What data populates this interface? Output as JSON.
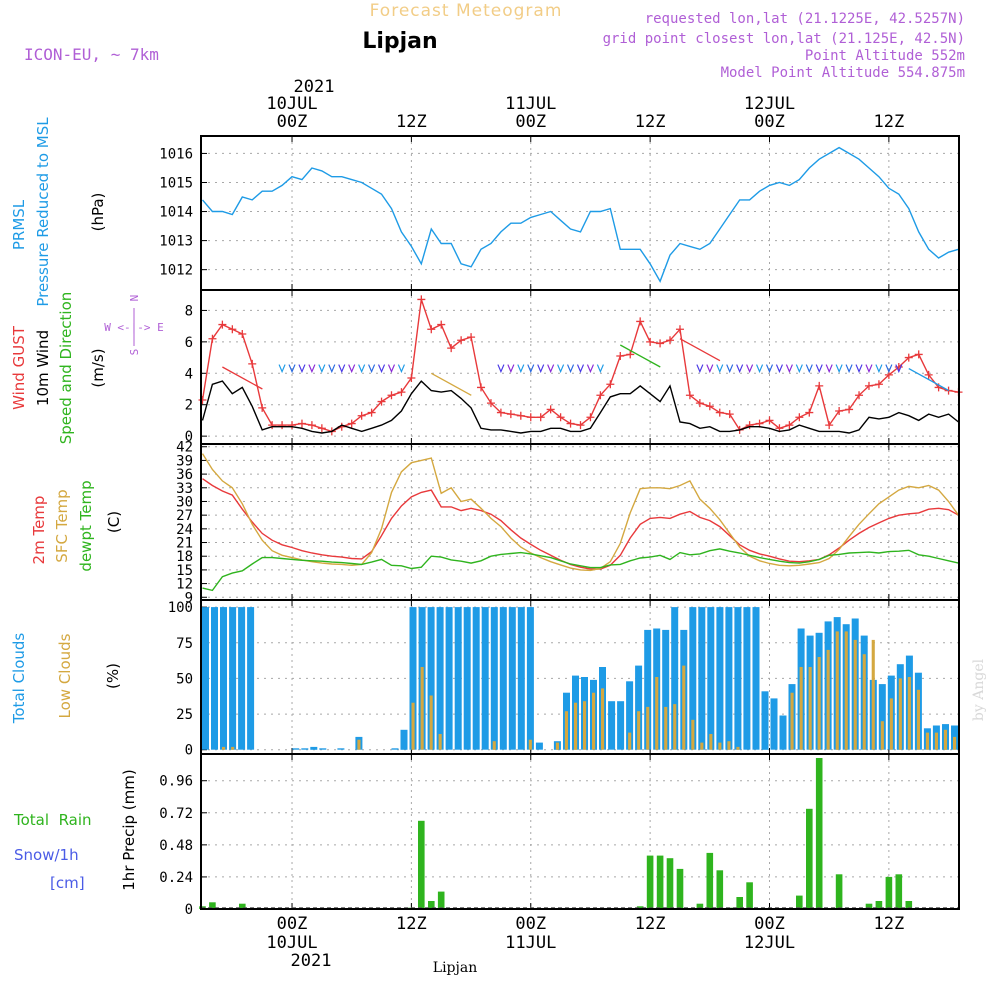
{
  "header": {
    "product_title": "Forecast Meteogram",
    "location": "Lipjan",
    "model": "ICON-EU, ~ 7km",
    "requested": "requested lon,lat (21.1225E, 42.5257N)",
    "grid_point": "grid point closest lon,lat (21.125E, 42.5N)",
    "point_alt": "Point Altitude 552m",
    "model_alt": "Model Point Altitude 554.875m",
    "footer_location": "Lipjan",
    "watermark": "by Angel"
  },
  "time_axis": {
    "top_year": "2021",
    "bottom_year": "2021",
    "ticks": [
      {
        "hour": 9,
        "label": "00Z",
        "date": "10JUL"
      },
      {
        "hour": 21,
        "label": "12Z",
        "date": ""
      },
      {
        "hour": 33,
        "label": "00Z",
        "date": "11JUL"
      },
      {
        "hour": 45,
        "label": "12Z",
        "date": ""
      },
      {
        "hour": 57,
        "label": "00Z",
        "date": "12JUL"
      },
      {
        "hour": 69,
        "label": "12Z",
        "date": ""
      }
    ]
  },
  "panels": {
    "pressure": {
      "label1": "PRMSL",
      "label2": "Pressure Reduced to MSL",
      "unit": "(hPa)"
    },
    "wind": {
      "gust": "Wind GUST",
      "wind10": "10m Wind",
      "speed_dir": "Speed and Direction",
      "unit": "(m/s)",
      "compass_ns": "N",
      "compass_s": "S",
      "compass_we": "W <-|-> E"
    },
    "temp": {
      "t2m": "2m Temp",
      "sfc": "SFC Temp",
      "dewpt": "dewpt Temp",
      "unit": "(C)"
    },
    "clouds": {
      "total": "Total Clouds",
      "low": "Low Clouds",
      "unit": "(%)"
    },
    "precip": {
      "rain": "Total  Rain",
      "snow": "Snow/1h",
      "cm": "[cm]",
      "unit": "1hr Precip (mm)"
    }
  },
  "chart_data": [
    {
      "type": "line",
      "title": "PRMSL Pressure Reduced to MSL",
      "ylabel": "(hPa)",
      "ylim": [
        1011.3,
        1016.6
      ],
      "yticks": [
        1012,
        1013,
        1014,
        1015,
        1016
      ],
      "grid": true,
      "x_hours": [
        0,
        1,
        2,
        3,
        4,
        5,
        6,
        7,
        8,
        9,
        10,
        11,
        12,
        13,
        14,
        15,
        16,
        17,
        18,
        19,
        20,
        21,
        22,
        23,
        24,
        25,
        26,
        27,
        28,
        29,
        30,
        31,
        32,
        33,
        34,
        35,
        36,
        37,
        38,
        39,
        40,
        41,
        42,
        43,
        44,
        45,
        46,
        47,
        48,
        49,
        50,
        51,
        52,
        53,
        54,
        55,
        56,
        57,
        58,
        59,
        60,
        61,
        62,
        63,
        64,
        65,
        66,
        67,
        68,
        69,
        70,
        71,
        72,
        73,
        74,
        75,
        76
      ],
      "series": [
        {
          "name": "PRMSL",
          "color": "#1e9be6",
          "values": [
            1014.4,
            1014.0,
            1014.0,
            1013.9,
            1014.5,
            1014.4,
            1014.7,
            1014.7,
            1014.9,
            1015.2,
            1015.1,
            1015.5,
            1015.4,
            1015.2,
            1015.2,
            1015.1,
            1015.0,
            1014.8,
            1014.6,
            1014.1,
            1013.3,
            1012.8,
            1012.2,
            1013.4,
            1012.9,
            1012.9,
            1012.2,
            1012.1,
            1012.7,
            1012.9,
            1013.3,
            1013.6,
            1013.6,
            1013.8,
            1013.9,
            1014.0,
            1013.7,
            1013.4,
            1013.3,
            1014.0,
            1014.0,
            1014.1,
            1012.7,
            1012.7,
            1012.7,
            1012.2,
            1011.6,
            1012.5,
            1012.9,
            1012.8,
            1012.7,
            1012.9,
            1013.4,
            1013.9,
            1014.4,
            1014.4,
            1014.7,
            1014.9,
            1015.0,
            1014.9,
            1015.1,
            1015.5,
            1015.8,
            1016.0,
            1016.2,
            1016.0,
            1015.8,
            1015.5,
            1015.2,
            1014.8,
            1014.6,
            1014.1,
            1013.3,
            1012.7,
            1012.4,
            1012.6,
            1012.7
          ]
        }
      ]
    },
    {
      "type": "line",
      "title": "Wind GUST / 10m Wind Speed and Direction",
      "ylabel": "(m/s)",
      "ylim": [
        -0.5,
        9.3
      ],
      "yticks": [
        0,
        2,
        4,
        6,
        8
      ],
      "grid": true,
      "series": [
        {
          "name": "Wind GUST",
          "color": "#e8393b",
          "marker": "+",
          "values": [
            2.3,
            6.2,
            7.1,
            6.8,
            6.5,
            4.6,
            1.8,
            0.7,
            0.7,
            0.7,
            0.8,
            0.7,
            0.5,
            0.3,
            0.6,
            0.8,
            1.3,
            1.5,
            2.2,
            2.6,
            2.8,
            3.7,
            8.7,
            6.8,
            7.1,
            5.6,
            6.1,
            6.3,
            3.1,
            2.1,
            1.5,
            1.4,
            1.3,
            1.2,
            1.2,
            1.7,
            1.2,
            0.8,
            0.7,
            1.2,
            2.6,
            3.3,
            5.1,
            5.2,
            7.3,
            6.0,
            5.9,
            6.1,
            6.8,
            2.6,
            2.1,
            1.9,
            1.5,
            1.4,
            0.4,
            0.7,
            0.8,
            1.0,
            0.5,
            0.7,
            1.2,
            1.5,
            3.2,
            0.7,
            1.6,
            1.7,
            2.6,
            3.2,
            3.3,
            3.9,
            4.4,
            5.0,
            5.2,
            3.9,
            3.1,
            2.9,
            2.8
          ]
        },
        {
          "name": "10m Wind",
          "color": "#000000",
          "values": [
            1.0,
            3.3,
            3.5,
            2.7,
            3.1,
            1.9,
            0.4,
            0.6,
            0.6,
            0.6,
            0.5,
            0.3,
            0.2,
            0.3,
            0.7,
            0.5,
            0.3,
            0.5,
            0.7,
            1.0,
            1.6,
            2.7,
            3.5,
            2.9,
            2.8,
            2.9,
            2.4,
            1.8,
            0.5,
            0.4,
            0.4,
            0.3,
            0.2,
            0.3,
            0.3,
            0.5,
            0.5,
            0.3,
            0.3,
            0.5,
            1.5,
            2.5,
            2.7,
            2.7,
            3.2,
            2.7,
            2.2,
            3.2,
            0.9,
            0.8,
            0.5,
            0.6,
            0.3,
            0.3,
            0.4,
            0.6,
            0.6,
            0.5,
            0.3,
            0.4,
            0.7,
            0.5,
            0.3,
            0.3,
            0.3,
            0.2,
            0.4,
            1.2,
            1.1,
            1.2,
            1.5,
            1.3,
            1.0,
            1.4,
            1.2,
            1.4,
            0.9
          ]
        }
      ]
    },
    {
      "type": "line",
      "title": "2m Temp / SFC Temp / dewpt Temp",
      "ylabel": "(C)",
      "ylim": [
        8.4,
        42.6
      ],
      "yticks": [
        9,
        12,
        15,
        18,
        21,
        24,
        27,
        30,
        33,
        36,
        39,
        42
      ],
      "grid": true,
      "series": [
        {
          "name": "2m Temp",
          "color": "#e8393b",
          "values": [
            35.0,
            33.5,
            32.3,
            31.4,
            28.3,
            25.5,
            23.0,
            21.5,
            20.5,
            19.9,
            19.2,
            18.7,
            18.3,
            18.0,
            17.8,
            17.5,
            17.4,
            19.0,
            22.5,
            26.3,
            29.0,
            31.0,
            32.0,
            32.5,
            28.8,
            28.8,
            28.0,
            28.5,
            28.0,
            27.2,
            25.8,
            23.8,
            22.0,
            20.6,
            19.3,
            18.2,
            17.1,
            16.2,
            15.6,
            15.2,
            15.2,
            16.0,
            18.2,
            22.0,
            25.0,
            26.3,
            26.5,
            26.3,
            27.2,
            27.8,
            26.5,
            25.8,
            24.5,
            22.5,
            20.5,
            19.3,
            18.5,
            18.0,
            17.4,
            16.9,
            16.8,
            17.0,
            17.3,
            18.3,
            19.8,
            21.5,
            23.0,
            24.3,
            25.3,
            26.3,
            27.0,
            27.3,
            27.5,
            28.3,
            28.5,
            28.2,
            27.0
          ]
        },
        {
          "name": "SFC Temp",
          "color": "#d4a840",
          "values": [
            40.5,
            37.0,
            34.5,
            33.0,
            29.5,
            25.0,
            21.5,
            19.2,
            18.2,
            17.7,
            17.2,
            16.8,
            16.5,
            16.3,
            16.2,
            16.0,
            16.2,
            18.8,
            24.0,
            32.0,
            36.5,
            38.5,
            39.0,
            39.5,
            31.8,
            33.0,
            30.0,
            30.5,
            28.5,
            26.3,
            24.5,
            22.0,
            20.0,
            18.7,
            17.7,
            16.8,
            16.1,
            15.4,
            15.0,
            14.9,
            15.3,
            16.8,
            20.8,
            27.5,
            32.8,
            33.0,
            33.0,
            32.8,
            33.5,
            34.5,
            30.5,
            28.5,
            26.0,
            23.0,
            20.0,
            18.0,
            17.0,
            16.4,
            16.0,
            15.9,
            16.0,
            16.3,
            16.6,
            17.5,
            19.5,
            22.3,
            25.0,
            27.3,
            29.5,
            31.0,
            32.5,
            33.3,
            33.0,
            33.5,
            32.5,
            30.0,
            27.0
          ]
        },
        {
          "name": "dewpt Temp",
          "color": "#2fb41e",
          "values": [
            11.0,
            10.5,
            13.5,
            14.3,
            14.8,
            16.3,
            17.7,
            17.7,
            17.5,
            17.3,
            17.1,
            17.0,
            16.9,
            16.7,
            16.6,
            16.4,
            16.2,
            16.7,
            17.3,
            16.0,
            15.9,
            15.3,
            15.6,
            18.0,
            17.8,
            17.2,
            16.9,
            16.5,
            17.0,
            18.0,
            18.4,
            18.6,
            18.8,
            18.5,
            18.1,
            17.7,
            17.0,
            16.3,
            15.9,
            15.5,
            15.5,
            16.1,
            16.2,
            17.0,
            17.6,
            17.8,
            18.2,
            17.3,
            18.8,
            18.3,
            18.5,
            19.2,
            19.6,
            19.1,
            18.7,
            18.2,
            17.7,
            17.3,
            16.9,
            16.6,
            16.5,
            16.8,
            17.3,
            18.2,
            18.4,
            18.7,
            18.8,
            18.9,
            18.7,
            19.0,
            19.1,
            19.3,
            18.3,
            18.0,
            17.5,
            17.0,
            16.5
          ]
        }
      ]
    },
    {
      "type": "bar",
      "title": "Total Clouds / Low Clouds",
      "ylabel": "(%)",
      "ylim": [
        -3,
        105
      ],
      "yticks": [
        0,
        25,
        50,
        75,
        100
      ],
      "grid": true,
      "series": [
        {
          "name": "Total Clouds",
          "color": "#1e9be6",
          "values": [
            100,
            100,
            100,
            100,
            100,
            100,
            0,
            0,
            0,
            0,
            1,
            1,
            2,
            1,
            0,
            1,
            0,
            9,
            0,
            0,
            0,
            1,
            14,
            100,
            100,
            100,
            100,
            100,
            100,
            100,
            100,
            100,
            100,
            100,
            100,
            100,
            100,
            5,
            0,
            6,
            40,
            52,
            51,
            49,
            58,
            34,
            34,
            48,
            59,
            84,
            85,
            84,
            100,
            84,
            100,
            100,
            100,
            100,
            100,
            100,
            100,
            100,
            41,
            36,
            24,
            46,
            85,
            80,
            82,
            90,
            93,
            88,
            92,
            80,
            49,
            46,
            52,
            60,
            66,
            54,
            15,
            17,
            18,
            17
          ]
        },
        {
          "name": "Low Clouds",
          "color": "#d4a840",
          "values": [
            0,
            0,
            2,
            2,
            0,
            0,
            0,
            0,
            0,
            0,
            0,
            0,
            0,
            0,
            0,
            0,
            0,
            7,
            0,
            0,
            0,
            0,
            0,
            33,
            58,
            38,
            11,
            0,
            0,
            0,
            0,
            0,
            6,
            0,
            0,
            0,
            7,
            0,
            0,
            5,
            27,
            33,
            34,
            40,
            43,
            0,
            0,
            12,
            27,
            30,
            51,
            30,
            32,
            59,
            21,
            5,
            11,
            5,
            6,
            2,
            0,
            0,
            0,
            0,
            0,
            40,
            58,
            58,
            65,
            70,
            83,
            83,
            77,
            67,
            77,
            20,
            36,
            50,
            51,
            42,
            12,
            12,
            14,
            9
          ]
        }
      ]
    },
    {
      "type": "bar",
      "title": "Total Rain / Snow/1h",
      "ylabel": "1hr Precip (mm)",
      "ylim": [
        0,
        1.16
      ],
      "yticks": [
        0,
        0.24,
        0.48,
        0.72,
        0.96
      ],
      "grid": true,
      "series": [
        {
          "name": "Total Rain",
          "color": "#2fb41e",
          "values": [
            0.02,
            0.05,
            0,
            0,
            0.04,
            0,
            0,
            0,
            0,
            0,
            0,
            0,
            0,
            0,
            0,
            0,
            0,
            0,
            0,
            0,
            0,
            0.01,
            0.66,
            0.06,
            0.13,
            0,
            0,
            0,
            0,
            0,
            0,
            0,
            0,
            0,
            0,
            0,
            0,
            0,
            0,
            0,
            0,
            0,
            0,
            0,
            0.02,
            0.4,
            0.4,
            0.38,
            0.3,
            0,
            0.04,
            0.42,
            0.29,
            0.01,
            0.09,
            0.2,
            0,
            0,
            0,
            0,
            0.1,
            0.75,
            1.13,
            0,
            0.26,
            0,
            0,
            0.04,
            0.06,
            0.24,
            0.26,
            0.06,
            0
          ]
        },
        {
          "name": "Snow/1h",
          "color": "#1e48e6",
          "values": []
        }
      ]
    }
  ]
}
